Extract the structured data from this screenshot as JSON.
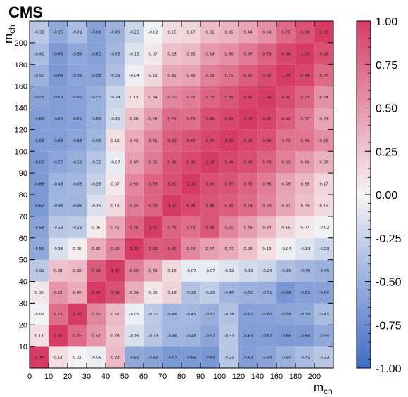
{
  "chart_data": {
    "type": "heatmap",
    "title": "CMS",
    "xlabel": "m",
    "xlabel_sub": "ch",
    "ylabel": "m",
    "ylabel_sub": "ch",
    "bin_edges": [
      0,
      10,
      20,
      30,
      40,
      50,
      60,
      70,
      80,
      90,
      100,
      120,
      140,
      160,
      180,
      200,
      210
    ],
    "x_ticks": [
      0,
      10,
      20,
      30,
      40,
      50,
      60,
      70,
      80,
      90,
      100,
      120,
      140,
      160,
      180,
      200
    ],
    "y_ticks": [
      10,
      20,
      30,
      40,
      50,
      60,
      70,
      80,
      90,
      100,
      120,
      140,
      160,
      180,
      200
    ],
    "zlim": [
      -1.0,
      1.0
    ],
    "colorbar_ticks": [
      "1.00",
      "0.75",
      "0.50",
      "0.25",
      "0.00",
      "-0.25",
      "-0.50",
      "-0.75",
      "-1.00"
    ],
    "colorscale": {
      "low": "#3f6bc4",
      "mid": "#f5f5f5",
      "high": "#d63c63"
    },
    "values": [
      [
        "1.00",
        "0.13",
        "0.02",
        "-0.06",
        "0.32",
        "-0.55",
        "-0.59",
        "-0.67",
        "-0.66",
        "-0.68",
        "-0.33",
        "-0.63",
        "-0.59",
        "-0.50",
        "-0.41",
        "-0.33"
      ],
      [
        "0.13",
        "1.00",
        "0.75",
        "0.52",
        "0.28",
        "-0.16",
        "-0.33",
        "-0.46",
        "-0.48",
        "-0.57",
        "-0.33",
        "-0.63",
        "-0.63",
        "-0.66",
        "-0.66",
        "-0.55"
      ],
      [
        "-0.02",
        "0.73",
        "1.00",
        "0.60",
        "0.32",
        "-0.05",
        "-0.31",
        "-0.46",
        "-0.45",
        "-0.51",
        "-0.38",
        "-0.61",
        "-0.60",
        "-0.58",
        "-0.56",
        "-0.41"
      ],
      [
        "0.08",
        "0.53",
        "0.40",
        "1.00",
        "0.89",
        "0.39",
        "0.08",
        "0.19",
        "-0.38",
        "-0.29",
        "-0.46",
        "-0.50",
        "-0.51",
        "-0.68",
        "-0.61",
        "-0.60"
      ],
      [
        "-0.32",
        "0.28",
        "0.32",
        "0.83",
        "1.00",
        "0.63",
        "0.42",
        "0.15",
        "-0.07",
        "-0.07",
        "-0.12",
        "-0.19",
        "-0.24",
        "-0.39",
        "-0.45",
        "-0.49"
      ],
      [
        "-0.55",
        "-0.16",
        "0.05",
        "0.39",
        "0.63",
        "1.00",
        "0.83",
        "0.85",
        "0.59",
        "0.47",
        "0.40",
        "0.28",
        "0.13",
        "-0.04",
        "-0.13",
        "-0.23"
      ],
      [
        "-0.59",
        "-0.33",
        "-0.31",
        "0.06",
        "0.42",
        "0.78",
        "1.00",
        "0.78",
        "0.73",
        "0.86",
        "0.61",
        "0.48",
        "0.34",
        "0.16",
        "0.07",
        "-0.02"
      ],
      [
        "-0.67",
        "-0.46",
        "-0.46",
        "-0.15",
        "0.15",
        "0.65",
        "0.78",
        "1.00",
        "0.93",
        "0.86",
        "0.82",
        "0.74",
        "0.60",
        "0.42",
        "0.29",
        "0.15"
      ],
      [
        "-0.66",
        "-0.48",
        "-0.45",
        "-0.26",
        "0.07",
        "0.59",
        "0.79",
        "0.90",
        "1.00",
        "0.90",
        "0.87",
        "0.78",
        "0.65",
        "0.45",
        "0.33",
        "0.17"
      ],
      [
        "-0.66",
        "-0.57",
        "-0.51",
        "-0.35",
        "-0.07",
        "0.47",
        "0.66",
        "0.86",
        "0.93",
        "1.00",
        "0.94",
        "0.89",
        "0.78",
        "0.63",
        "0.49",
        "0.37"
      ],
      [
        "-0.63",
        "-0.63",
        "-0.58",
        "-0.46",
        "0.12",
        "0.40",
        "0.61",
        "0.82",
        "0.87",
        "0.94",
        "1.00",
        "0.94",
        "0.89",
        "0.70",
        "0.69",
        "0.56"
      ],
      [
        "-0.63",
        "-0.63",
        "-0.61",
        "-0.50",
        "-0.19",
        "0.28",
        "0.48",
        "0.74",
        "0.73",
        "0.89",
        "0.94",
        "1.00",
        "0.95",
        "0.82",
        "0.67",
        "0.44"
      ],
      [
        "-0.59",
        "-0.63",
        "-0.60",
        "-0.51",
        "-0.24",
        "0.13",
        "0.34",
        "0.60",
        "0.65",
        "0.78",
        "0.86",
        "0.95",
        "1.00",
        "0.91",
        "0.79",
        "0.54"
      ],
      [
        "-0.50",
        "-0.66",
        "-0.58",
        "-0.58",
        "-0.39",
        "-0.04",
        "0.16",
        "0.42",
        "0.45",
        "0.63",
        "0.70",
        "0.82",
        "0.91",
        "1.00",
        "0.94",
        "0.75"
      ],
      [
        "-0.41",
        "-0.66",
        "-0.56",
        "-0.61",
        "-0.45",
        "-0.13",
        "0.07",
        "0.29",
        "0.33",
        "0.49",
        "0.56",
        "0.67",
        "0.79",
        "0.94",
        "1.00",
        "0.88"
      ],
      [
        "-0.33",
        "-0.55",
        "-0.41",
        "-0.60",
        "-0.49",
        "-0.23",
        "-0.02",
        "0.15",
        "0.17",
        "0.31",
        "0.35",
        "0.44",
        "0.54",
        "0.75",
        "0.88",
        "1.00"
      ]
    ]
  }
}
